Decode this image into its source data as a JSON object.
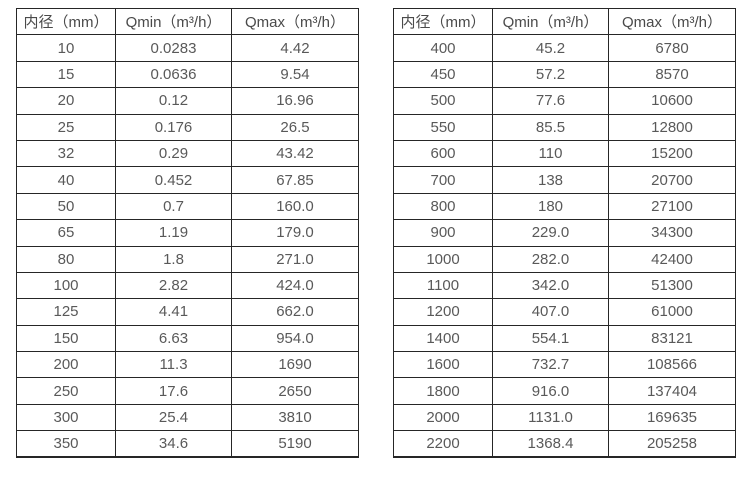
{
  "theme": {
    "border_color": "#262626",
    "text_color": "#595959",
    "background_color": "#ffffff"
  },
  "tables": [
    {
      "name": "flow-rate-table-small-diameters",
      "headers": [
        "内径（mm）",
        "Qmin（m³/h）",
        "Qmax（m³/h）"
      ],
      "rows": [
        [
          "10",
          "0.0283",
          "4.42"
        ],
        [
          "15",
          "0.0636",
          "9.54"
        ],
        [
          "20",
          "0.12",
          "16.96"
        ],
        [
          "25",
          "0.176",
          "26.5"
        ],
        [
          "32",
          "0.29",
          "43.42"
        ],
        [
          "40",
          "0.452",
          "67.85"
        ],
        [
          "50",
          "0.7",
          "160.0"
        ],
        [
          "65",
          "1.19",
          "179.0"
        ],
        [
          "80",
          "1.8",
          "271.0"
        ],
        [
          "100",
          "2.82",
          "424.0"
        ],
        [
          "125",
          "4.41",
          "662.0"
        ],
        [
          "150",
          "6.63",
          "954.0"
        ],
        [
          "200",
          "11.3",
          "1690"
        ],
        [
          "250",
          "17.6",
          "2650"
        ],
        [
          "300",
          "25.4",
          "3810"
        ],
        [
          "350",
          "34.6",
          "5190"
        ]
      ]
    },
    {
      "name": "flow-rate-table-large-diameters",
      "headers": [
        "内径（mm）",
        "Qmin（m³/h）",
        "Qmax（m³/h）"
      ],
      "rows": [
        [
          "400",
          "45.2",
          "6780"
        ],
        [
          "450",
          "57.2",
          "8570"
        ],
        [
          "500",
          "77.6",
          "10600"
        ],
        [
          "550",
          "85.5",
          "12800"
        ],
        [
          "600",
          "110",
          "15200"
        ],
        [
          "700",
          "138",
          "20700"
        ],
        [
          "800",
          "180",
          "27100"
        ],
        [
          "900",
          "229.0",
          "34300"
        ],
        [
          "1000",
          "282.0",
          "42400"
        ],
        [
          "1100",
          "342.0",
          "51300"
        ],
        [
          "1200",
          "407.0",
          "61000"
        ],
        [
          "1400",
          "554.1",
          "83121"
        ],
        [
          "1600",
          "732.7",
          "108566"
        ],
        [
          "1800",
          "916.0",
          "137404"
        ],
        [
          "2000",
          "1131.0",
          "169635"
        ],
        [
          "2200",
          "1368.4",
          "205258"
        ]
      ]
    }
  ]
}
